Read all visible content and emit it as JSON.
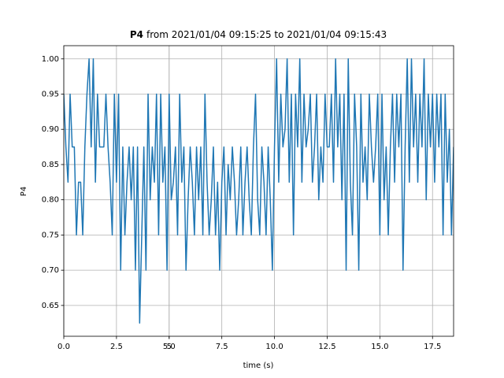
{
  "chart_data": {
    "type": "line",
    "title": {
      "bold": "P4",
      "text": "from 2021/01/04 09:15:25 to 2021/01/04 09:15:43"
    },
    "x_label": "time (s)",
    "y_label": "P4",
    "color": "#1f77b4",
    "grid": true,
    "xlim": [
      0,
      18.5
    ],
    "ylim": [
      0.60625,
      1.01875
    ],
    "xticks": [
      {
        "value": 0,
        "label": "0.0"
      },
      2.5,
      5,
      {
        "value": 5,
        "label": "5.0"
      },
      7.5,
      {
        "value": 10,
        "label": "10.0"
      },
      12.5,
      {
        "value": 15,
        "label": "15.0"
      },
      17.5
    ],
    "yticks": [
      0.65,
      {
        "value": 0.7,
        "label": "0.70"
      },
      0.75,
      {
        "value": 0.8,
        "label": "0.80"
      },
      0.85,
      {
        "value": 0.9,
        "label": "0.90"
      },
      0.95,
      {
        "value": 1,
        "label": "1.00"
      }
    ],
    "x": [
      0,
      0.1,
      0.2,
      0.3,
      0.4,
      0.5,
      0.6,
      0.7,
      0.8,
      0.9,
      1,
      1.1,
      1.2,
      1.3,
      1.4,
      1.5,
      1.6,
      1.7,
      1.8,
      1.9,
      2,
      2.1,
      2.2,
      2.3,
      2.4,
      2.5,
      2.6,
      2.7,
      2.8,
      2.9,
      3,
      3.1,
      3.2,
      3.3,
      3.4,
      3.5,
      3.6,
      3.7,
      3.8,
      3.9,
      4,
      4.1,
      4.2,
      4.3,
      4.4,
      4.5,
      4.6,
      4.7,
      4.8,
      4.9,
      5,
      5.1,
      5.2,
      5.3,
      5.4,
      5.5,
      5.6,
      5.7,
      5.8,
      5.9,
      6,
      6.1,
      6.2,
      6.3,
      6.4,
      6.5,
      6.6,
      6.7,
      6.8,
      6.9,
      7,
      7.1,
      7.2,
      7.3,
      7.4,
      7.5,
      7.6,
      7.7,
      7.8,
      7.9,
      8,
      8.1,
      8.2,
      8.3,
      8.4,
      8.5,
      8.6,
      8.7,
      8.8,
      8.9,
      9,
      9.1,
      9.2,
      9.3,
      9.4,
      9.5,
      9.6,
      9.7,
      9.8,
      9.9,
      10,
      10.1,
      10.2,
      10.3,
      10.4,
      10.5,
      10.6,
      10.7,
      10.8,
      10.9,
      11,
      11.1,
      11.2,
      11.3,
      11.4,
      11.5,
      11.6,
      11.7,
      11.8,
      11.9,
      12,
      12.1,
      12.2,
      12.3,
      12.4,
      12.5,
      12.6,
      12.7,
      12.8,
      12.9,
      13,
      13.1,
      13.2,
      13.3,
      13.4,
      13.5,
      13.6,
      13.7,
      13.8,
      13.9,
      14,
      14.1,
      14.2,
      14.3,
      14.4,
      14.5,
      14.6,
      14.7,
      14.8,
      14.9,
      15,
      15.1,
      15.2,
      15.3,
      15.4,
      15.5,
      15.6,
      15.7,
      15.8,
      15.9,
      16,
      16.1,
      16.2,
      16.3,
      16.4,
      16.5,
      16.6,
      16.7,
      16.8,
      16.9,
      17,
      17.1,
      17.2,
      17.3,
      17.4,
      17.5,
      17.6,
      17.7,
      17.8,
      17.9,
      18,
      18.1,
      18.2,
      18.3,
      18.4,
      18.5
    ],
    "values": [
      0.95,
      0.875,
      0.825,
      0.95,
      0.875,
      0.875,
      0.75,
      0.825,
      0.825,
      0.75,
      0.875,
      0.95,
      1.0,
      0.875,
      1.0,
      0.825,
      0.95,
      0.875,
      0.875,
      0.875,
      0.95,
      0.875,
      0.825,
      0.75,
      0.95,
      0.825,
      0.95,
      0.7,
      0.875,
      0.75,
      0.825,
      0.875,
      0.8,
      0.875,
      0.7,
      0.875,
      0.625,
      0.75,
      0.875,
      0.7,
      0.95,
      0.8,
      0.875,
      0.825,
      0.95,
      0.75,
      0.95,
      0.825,
      0.875,
      0.7,
      0.95,
      0.8,
      0.825,
      0.875,
      0.75,
      0.95,
      0.825,
      0.875,
      0.7,
      0.8,
      0.875,
      0.825,
      0.75,
      0.875,
      0.8,
      0.875,
      0.75,
      0.95,
      0.825,
      0.75,
      0.8,
      0.875,
      0.75,
      0.825,
      0.7,
      0.825,
      0.875,
      0.75,
      0.85,
      0.8,
      0.875,
      0.825,
      0.75,
      0.8,
      0.875,
      0.75,
      0.825,
      0.875,
      0.8,
      0.75,
      0.875,
      0.95,
      0.8,
      0.75,
      0.875,
      0.825,
      0.75,
      0.875,
      0.8,
      0.7,
      0.875,
      1.0,
      0.825,
      0.95,
      0.875,
      0.9,
      1.0,
      0.825,
      0.95,
      0.75,
      0.95,
      0.875,
      1.0,
      0.825,
      0.95,
      0.875,
      0.9,
      0.95,
      0.825,
      0.875,
      0.95,
      0.8,
      0.875,
      0.825,
      0.95,
      0.875,
      0.875,
      0.95,
      0.825,
      1.0,
      0.875,
      0.95,
      0.8,
      0.95,
      0.7,
      1.0,
      0.825,
      0.75,
      0.95,
      0.875,
      0.7,
      0.95,
      0.825,
      0.875,
      0.8,
      0.95,
      0.875,
      0.825,
      0.875,
      0.95,
      0.75,
      0.95,
      0.8,
      0.875,
      0.75,
      0.875,
      0.95,
      0.825,
      0.95,
      0.875,
      0.95,
      0.7,
      0.875,
      1.0,
      0.825,
      1.0,
      0.875,
      0.95,
      0.825,
      0.95,
      0.875,
      1.0,
      0.8,
      0.95,
      0.875,
      0.95,
      0.825,
      0.95,
      0.875,
      0.95,
      0.75,
      0.95,
      0.825,
      0.9,
      0.75,
      0.875
    ]
  }
}
